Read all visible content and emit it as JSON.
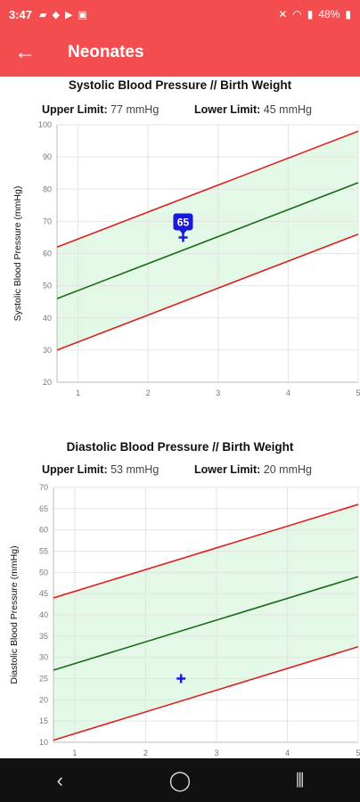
{
  "status_bar": {
    "time": "3:47",
    "battery": "48%"
  },
  "app_bar": {
    "title": "Neonates"
  },
  "colors": {
    "accent": "#f44d4f",
    "upper_line": "#e02020",
    "mean_line": "#1a6b1a",
    "band_fill": "#e3f8e6",
    "point": "#1a1adf"
  },
  "chart_data": [
    {
      "type": "line",
      "title": "Systolic Blood Pressure // Birth Weight",
      "upper_limit_label": "Upper Limit:",
      "upper_limit_value": "77 mmHg",
      "lower_limit_label": "Lower Limit:",
      "lower_limit_value": "45 mmHg",
      "ylabel": "Systolic Blood Pressure (mmHg)",
      "xlabel": "",
      "xlim": [
        0.7,
        5
      ],
      "ylim": [
        20,
        100
      ],
      "xticks": [
        "1",
        "2",
        "3",
        "4",
        "5"
      ],
      "yticks": [
        "20",
        "30",
        "40",
        "50",
        "60",
        "70",
        "80",
        "90",
        "100"
      ],
      "grid": true,
      "series": [
        {
          "role": "upper",
          "x": [
            0.7,
            5
          ],
          "y": [
            62,
            98
          ]
        },
        {
          "role": "mean",
          "x": [
            0.7,
            5
          ],
          "y": [
            46,
            82
          ]
        },
        {
          "role": "lower",
          "x": [
            0.7,
            5
          ],
          "y": [
            30,
            66
          ]
        }
      ],
      "point": {
        "x": 2.5,
        "y": 65,
        "label": "65"
      }
    },
    {
      "type": "line",
      "title": "Diastolic Blood Pressure // Birth Weight",
      "upper_limit_label": "Upper Limit:",
      "upper_limit_value": "53 mmHg",
      "lower_limit_label": "Lower Limit:",
      "lower_limit_value": "20 mmHg",
      "ylabel": "Diastolic Blood Pressure (mmHg)",
      "xlabel": "",
      "xlim": [
        0.7,
        5
      ],
      "ylim": [
        10,
        70
      ],
      "xticks": [
        "1",
        "2",
        "3",
        "4",
        "5"
      ],
      "yticks": [
        "10",
        "15",
        "20",
        "25",
        "30",
        "35",
        "40",
        "45",
        "50",
        "55",
        "60",
        "65",
        "70"
      ],
      "grid": true,
      "series": [
        {
          "role": "upper",
          "x": [
            0.7,
            5
          ],
          "y": [
            44,
            66
          ]
        },
        {
          "role": "mean",
          "x": [
            0.7,
            5
          ],
          "y": [
            27,
            49
          ]
        },
        {
          "role": "lower",
          "x": [
            0.7,
            5
          ],
          "y": [
            10.5,
            32.5
          ]
        }
      ],
      "point": {
        "x": 2.5,
        "y": 25,
        "label": ""
      }
    }
  ]
}
